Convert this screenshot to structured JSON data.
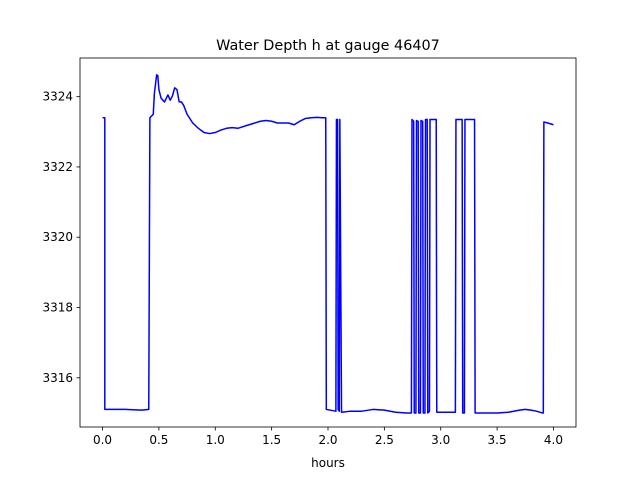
{
  "chart_data": {
    "type": "line",
    "title": "Water Depth h at gauge 46407",
    "xlabel": "hours",
    "ylabel": "",
    "xlim": [
      -0.2,
      4.2
    ],
    "ylim": [
      3314.6,
      3325.1
    ],
    "xticks": [
      0.0,
      0.5,
      1.0,
      1.5,
      2.0,
      2.5,
      3.0,
      3.5,
      4.0
    ],
    "xtick_labels": [
      "0.0",
      "0.5",
      "1.0",
      "1.5",
      "2.0",
      "2.5",
      "3.0",
      "3.5",
      "4.0"
    ],
    "yticks": [
      3316,
      3318,
      3320,
      3322,
      3324
    ],
    "ytick_labels": [
      "3316",
      "3318",
      "3320",
      "3322",
      "3324"
    ],
    "grid": false,
    "series": [
      {
        "color": "#0000ff",
        "x": [
          0.0,
          0.02,
          0.02,
          0.2,
          0.35,
          0.41,
          0.42,
          0.45,
          0.46,
          0.48,
          0.49,
          0.5,
          0.52,
          0.55,
          0.58,
          0.6,
          0.62,
          0.64,
          0.66,
          0.68,
          0.7,
          0.72,
          0.75,
          0.8,
          0.85,
          0.9,
          0.95,
          1.0,
          1.05,
          1.1,
          1.15,
          1.2,
          1.3,
          1.4,
          1.45,
          1.5,
          1.55,
          1.6,
          1.65,
          1.7,
          1.75,
          1.8,
          1.85,
          1.9,
          1.95,
          1.98,
          1.985,
          2.07,
          2.075,
          2.085,
          2.09,
          2.1,
          2.105,
          2.12,
          2.2,
          2.3,
          2.4,
          2.5,
          2.6,
          2.7,
          2.74,
          2.745,
          2.76,
          2.765,
          2.78,
          2.785,
          2.8,
          2.805,
          2.82,
          2.825,
          2.84,
          2.845,
          2.86,
          2.865,
          2.88,
          2.885,
          2.9,
          2.905,
          2.96,
          2.965,
          2.98,
          2.985,
          3.1,
          3.13,
          3.135,
          3.19,
          3.195,
          3.21,
          3.215,
          3.3,
          3.305,
          3.4,
          3.5,
          3.6,
          3.7,
          3.75,
          3.8,
          3.85,
          3.9,
          3.91,
          3.915,
          3.95,
          4.0
        ],
        "y": [
          3323.4,
          3323.4,
          3315.1,
          3315.1,
          3315.08,
          3315.1,
          3323.4,
          3323.5,
          3324.1,
          3324.62,
          3324.6,
          3324.2,
          3323.95,
          3323.85,
          3324.05,
          3323.9,
          3324.02,
          3324.25,
          3324.2,
          3323.85,
          3323.85,
          3323.75,
          3323.5,
          3323.25,
          3323.1,
          3322.98,
          3322.95,
          3322.98,
          3323.05,
          3323.1,
          3323.12,
          3323.1,
          3323.2,
          3323.3,
          3323.32,
          3323.3,
          3323.25,
          3323.25,
          3323.25,
          3323.2,
          3323.3,
          3323.38,
          3323.4,
          3323.41,
          3323.4,
          3323.4,
          3315.1,
          3315.05,
          3323.35,
          3323.35,
          3315.1,
          3315.05,
          3323.35,
          3315.02,
          3315.05,
          3315.05,
          3315.1,
          3315.08,
          3315.02,
          3315.0,
          3315.0,
          3323.35,
          3323.3,
          3315.0,
          3315.0,
          3323.32,
          3323.3,
          3315.0,
          3315.0,
          3323.32,
          3323.3,
          3315.0,
          3315.0,
          3323.35,
          3323.35,
          3315.0,
          3315.05,
          3323.35,
          3323.35,
          3315.02,
          3315.02,
          3315.02,
          3315.02,
          3315.02,
          3323.35,
          3323.35,
          3315.0,
          3315.0,
          3323.35,
          3323.35,
          3315.0,
          3315.0,
          3315.0,
          3315.02,
          3315.08,
          3315.1,
          3315.08,
          3315.05,
          3315.0,
          3315.0,
          3323.28,
          3323.25,
          3323.2
        ]
      }
    ]
  }
}
